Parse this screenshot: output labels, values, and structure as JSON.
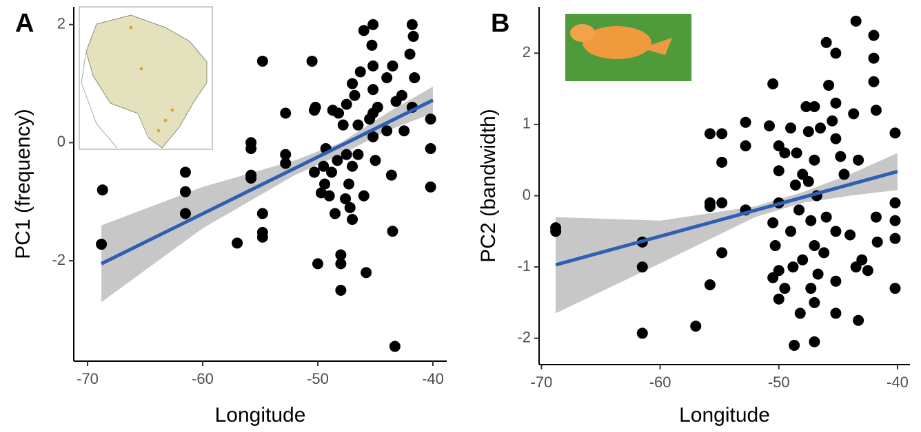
{
  "chart_data": [
    {
      "type": "scatter",
      "label": "A",
      "x_label": "Longitude",
      "y_label": "PC1 (frequency)",
      "xlim": [
        -71.2,
        -38.8
      ],
      "xticks": [
        -70,
        -60,
        -50,
        -40
      ],
      "ylim": [
        -3.7,
        2.3
      ],
      "yticks": [
        -2,
        0,
        2
      ],
      "color": "#000000",
      "fit_color": "#2f5fb3",
      "band_color": "#bdbdbd",
      "x": [
        -68.7,
        -68.8,
        -61.5,
        -61.5,
        -61.5,
        -57,
        -55.8,
        -55.8,
        -55.8,
        -55.8,
        -54.8,
        -54.8,
        -54.8,
        -54.8,
        -52.8,
        -52.8,
        -52.8,
        -50.5,
        -50.3,
        -50.2,
        -50.3,
        -50,
        -49.5,
        -49.4,
        -49.3,
        -49,
        -48.7,
        -48.5,
        -48.3,
        -48.2,
        -48,
        -48,
        -48,
        -47.8,
        -47.5,
        -47.5,
        -47.3,
        -47.2,
        -47,
        -47,
        -47,
        -46.8,
        -46.5,
        -46.3,
        -46,
        -46,
        -45.8,
        -45.5,
        -45.3,
        -45.2,
        -45.2,
        -45.2,
        -45.2,
        -45.2,
        -45,
        -44.8,
        -44,
        -43.6,
        -43.5,
        -43.5,
        -43.3,
        -43.2,
        -42.7,
        -42.5,
        -42,
        -41.8,
        -41.7,
        -41.6,
        -41.8,
        -40.2,
        -40.2,
        -40.2,
        -44,
        -46.5,
        -48.8,
        -49.7,
        -47.6
      ],
      "y": [
        -0.8,
        -1.72,
        -0.5,
        -0.83,
        -1.2,
        -1.7,
        0,
        -0.1,
        -0.55,
        -0.6,
        1.38,
        -1.2,
        -1.52,
        -1.6,
        0.5,
        -0.2,
        -0.35,
        1.38,
        0.55,
        0.6,
        -0.5,
        -2.05,
        -0.4,
        -0.7,
        -0.1,
        -0.9,
        0.55,
        -1.2,
        -0.3,
        0.5,
        -1.9,
        -2.05,
        -2.5,
        0.3,
        0.65,
        -0.2,
        -0.7,
        -1.1,
        1.0,
        -0.4,
        -1.3,
        0.8,
        -0.2,
        1.2,
        1.9,
        -0.9,
        -2.2,
        0.4,
        1.65,
        2.0,
        1.3,
        0.9,
        0.5,
        0.1,
        -0.3,
        0.6,
        0.2,
        -0.55,
        1.3,
        -1.5,
        -3.45,
        0.7,
        0.8,
        0.2,
        1.5,
        2.0,
        1.8,
        1.1,
        0.6,
        0.4,
        -0.1,
        -0.75,
        1.1,
        0.3,
        -0.5,
        -0.85,
        -0.95
      ],
      "fit": {
        "x": [
          -68.8,
          -40
        ],
        "y": [
          -2.05,
          0.72
        ]
      },
      "band": {
        "x": [
          -68.8,
          -60,
          -52,
          -48,
          -44,
          -40
        ],
        "lower": [
          -2.7,
          -1.45,
          -0.55,
          -0.2,
          0.2,
          0.5
        ],
        "upper": [
          -1.4,
          -0.75,
          -0.3,
          0.0,
          0.5,
          0.95
        ]
      }
    },
    {
      "type": "scatter",
      "label": "B",
      "x_label": "Longitude",
      "y_label": "PC2 (bandwidth)",
      "xlim": [
        -70.2,
        -38.95
      ],
      "xticks": [
        -70,
        -60,
        -50,
        -40
      ],
      "ylim": [
        -2.37,
        2.65
      ],
      "yticks": [
        -2,
        -1,
        0,
        1,
        2
      ],
      "color": "#000000",
      "fit_color": "#2f5fb3",
      "band_color": "#bdbdbd",
      "x": [
        -68.8,
        -68.8,
        -61.5,
        -61.5,
        -61.5,
        -57,
        -55.8,
        -55.8,
        -55.8,
        -55.8,
        -54.8,
        -54.8,
        -54.8,
        -54.8,
        -52.8,
        -52.8,
        -52.8,
        -50.8,
        -50.5,
        -50.5,
        -50.5,
        -50.3,
        -50,
        -50,
        -50,
        -50,
        -50,
        -49.5,
        -49.5,
        -49,
        -49,
        -48.8,
        -48.7,
        -48.5,
        -48.3,
        -48.2,
        -48,
        -48,
        -47.7,
        -47.5,
        -47.5,
        -47.3,
        -47.3,
        -47,
        -47,
        -47,
        -47,
        -47,
        -46.8,
        -46.7,
        -46.5,
        -46,
        -46,
        -45.8,
        -45.5,
        -45.2,
        -45.2,
        -45.2,
        -45.2,
        -45.2,
        -45.2,
        -44.8,
        -44,
        -43.7,
        -43.5,
        -43.5,
        -43.3,
        -43.3,
        -43,
        -42.5,
        -42,
        -42,
        -42,
        -41.8,
        -41.8,
        -41.7,
        -40.2,
        -40.2,
        -40.2,
        -40.2,
        -40.2,
        -44.5,
        -46.2,
        -48.6
      ],
      "y": [
        -0.45,
        -0.5,
        -0.65,
        -1.0,
        -1.93,
        -1.83,
        0.87,
        -0.1,
        -0.15,
        -1.25,
        0.87,
        0.47,
        -0.1,
        -0.8,
        1.03,
        0.7,
        -0.2,
        0.98,
        1.57,
        -0.38,
        -1.15,
        -0.7,
        0.7,
        0.35,
        -0.1,
        -1.05,
        -1.45,
        0.6,
        -1.3,
        0.95,
        -0.5,
        -1.0,
        -2.1,
        0.6,
        -0.2,
        -1.65,
        0.3,
        -0.9,
        1.25,
        0.9,
        0.2,
        -0.35,
        -1.3,
        1.25,
        0.5,
        -0.7,
        -1.5,
        -2.05,
        0.0,
        -1.1,
        0.95,
        2.15,
        -0.3,
        1.55,
        1.05,
        2.0,
        1.3,
        0.8,
        -0.5,
        -1.2,
        -1.65,
        0.55,
        -0.55,
        1.15,
        2.45,
        -1.0,
        -1.75,
        0.5,
        -0.9,
        -1.05,
        2.25,
        1.93,
        1.6,
        1.2,
        -0.3,
        -0.65,
        0.88,
        -0.1,
        -0.35,
        -0.6,
        -1.3,
        0.3,
        -0.8,
        0.15
      ],
      "fit": {
        "x": [
          -68.8,
          -40
        ],
        "y": [
          -0.97,
          0.34
        ]
      },
      "band": {
        "x": [
          -68.8,
          -60,
          -52,
          -48,
          -44,
          -40
        ],
        "lower": [
          -1.65,
          -0.95,
          -0.3,
          -0.1,
          0.0,
          0.08
        ],
        "upper": [
          -0.3,
          -0.35,
          -0.15,
          0.05,
          0.3,
          0.6
        ]
      }
    }
  ]
}
